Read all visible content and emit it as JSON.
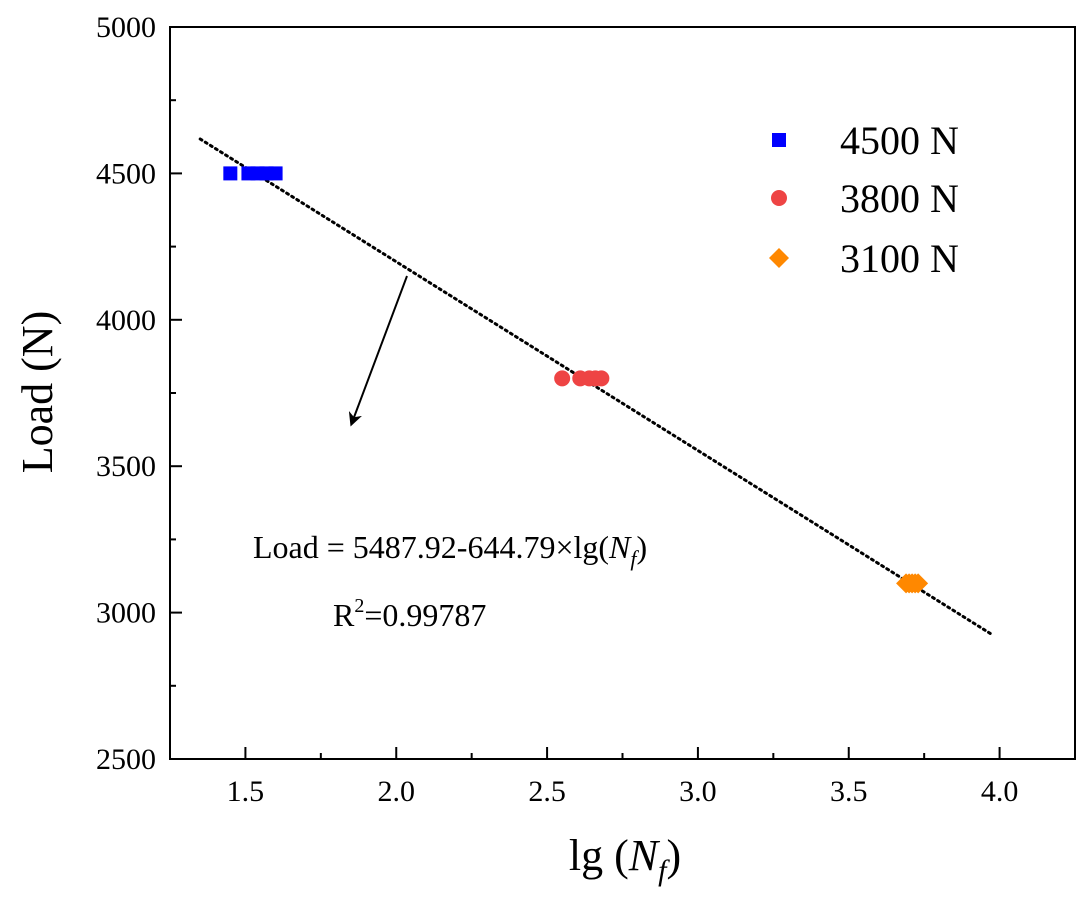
{
  "chart_data": {
    "type": "scatter",
    "xlabel_main": "lg (",
    "xlabel_var": "N",
    "xlabel_sub": "f",
    "xlabel_close": ")",
    "ylabel": "Load (N)",
    "xlim": [
      1.25,
      4.25
    ],
    "ylim": [
      2500,
      5000
    ],
    "x_ticks": [
      1.5,
      2.0,
      2.5,
      3.0,
      3.5,
      4.0
    ],
    "x_tick_labels": [
      "1.5",
      "2.0",
      "2.5",
      "3.0",
      "3.5",
      "4.0"
    ],
    "y_ticks": [
      2500,
      3000,
      3500,
      4000,
      4500,
      5000
    ],
    "y_tick_labels": [
      "2500",
      "3000",
      "3500",
      "4000",
      "4500",
      "5000"
    ],
    "legend_position": "top-right",
    "series": [
      {
        "name": "4500 N",
        "marker": "square",
        "color": "#0000ff",
        "points": [
          [
            1.45,
            4500
          ],
          [
            1.51,
            4500
          ],
          [
            1.54,
            4500
          ],
          [
            1.57,
            4500
          ],
          [
            1.6,
            4500
          ]
        ]
      },
      {
        "name": "3800 N",
        "marker": "circle",
        "color": "#ee4444",
        "points": [
          [
            2.55,
            3800
          ],
          [
            2.61,
            3800
          ],
          [
            2.64,
            3800
          ],
          [
            2.66,
            3800
          ],
          [
            2.68,
            3800
          ]
        ]
      },
      {
        "name": "3100 N",
        "marker": "diamond",
        "color": "#ff8800",
        "points": [
          [
            3.69,
            3100
          ],
          [
            3.7,
            3100
          ],
          [
            3.71,
            3100
          ],
          [
            3.72,
            3100
          ],
          [
            3.73,
            3100
          ]
        ]
      }
    ],
    "fit_line": {
      "x_range": [
        1.35,
        3.97
      ],
      "intercept": 5487.92,
      "slope": -644.79,
      "style": "dotted"
    },
    "equation": {
      "main": "Load = 5487.92-644.79×lg(",
      "var": "N",
      "sub": "f",
      "close": ")"
    },
    "r2": {
      "label": "R",
      "sup": "2",
      "value": "=0.99787"
    }
  }
}
